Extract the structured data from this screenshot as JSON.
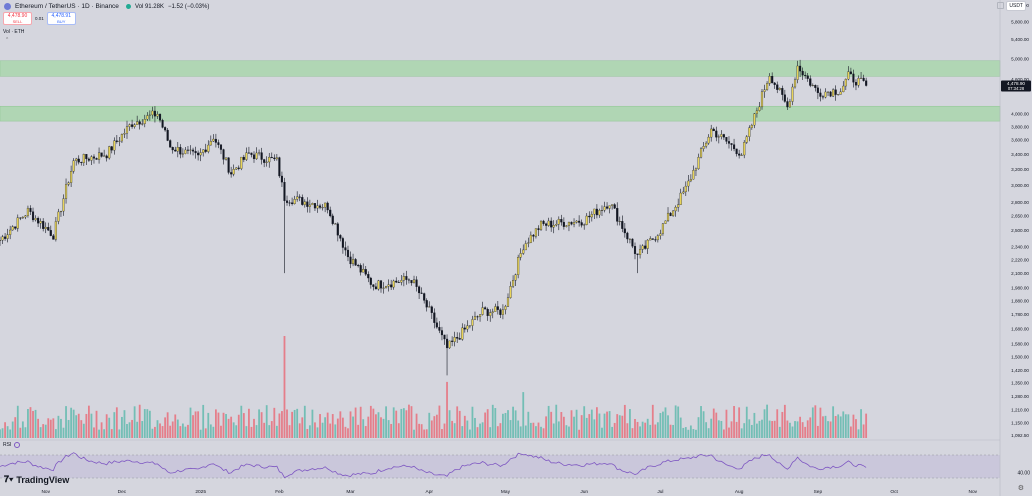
{
  "header": {
    "symbol": "Ethereum / TetherUS · 1D · Binance",
    "volume": "Vol 91.28K",
    "change": "−1.52 (−0.03%)"
  },
  "trade": {
    "sell_price": "4,478.90",
    "sell_label": "SELL",
    "spread": "0.01",
    "buy_price": "4,478.91",
    "buy_label": "BUY"
  },
  "panes": {
    "volume_label": "Vol · ETH",
    "rsi_label": "RSI"
  },
  "brand": {
    "name": "TradingView"
  },
  "axis": {
    "currency": "USDT"
  },
  "price_badge": {
    "price": "4,478.90",
    "countdown": "07:34:28"
  },
  "colors": {
    "up": "#22ab94",
    "down": "#f23645",
    "zone": "#a3d5a5",
    "rsi": "#7e57c2",
    "bg": "#d5d6de"
  },
  "icons": [
    "tradingview-logo-icon",
    "eye-icon",
    "gear-icon",
    "caret-up-icon"
  ],
  "chart_data": {
    "type": "candlestick",
    "scale": "log",
    "y_ticks": [
      1092.5,
      1150,
      1210,
      1280,
      1350,
      1420,
      1500,
      1580,
      1680,
      1780,
      1880,
      1980,
      2100,
      2220,
      2340,
      2500,
      2650,
      2800,
      3000,
      3200,
      3400,
      3600,
      3800,
      4000,
      4600,
      5000,
      5400,
      5800,
      6200
    ],
    "y_tick_labels": [
      "1,092.50",
      "1,150.00",
      "1,210.00",
      "1,280.00",
      "1,350.00",
      "1,420.00",
      "1,500.00",
      "1,580.00",
      "1,680.00",
      "1,780.00",
      "1,880.00",
      "1,980.00",
      "2,100.00",
      "2,220.00",
      "2,340.00",
      "2,500.00",
      "2,650.00",
      "2,800.00",
      "3,000.00",
      "3,200.00",
      "3,400.00",
      "3,600.00",
      "3,800.00",
      "4,000.00",
      "4,600.00",
      "5,000.00",
      "5,400.00",
      "5,800.00",
      "6,200.00"
    ],
    "x_labels": [
      "Nov",
      "Dec",
      "2025",
      "Feb",
      "Mar",
      "Apr",
      "May",
      "Jun",
      "Jul",
      "Aug",
      "Sep",
      "Oct",
      "Nov"
    ],
    "zones": [
      {
        "low": 4650,
        "high": 4950
      },
      {
        "low": 3880,
        "high": 4120
      }
    ],
    "price_path": [
      [
        "2024-10-14",
        2400
      ],
      [
        "2024-10-25",
        2700
      ],
      [
        "2024-11-04",
        2450
      ],
      [
        "2024-11-12",
        3300
      ],
      [
        "2024-11-25",
        3400
      ],
      [
        "2024-12-05",
        3850
      ],
      [
        "2024-12-15",
        4000
      ],
      [
        "2024-12-20",
        3500
      ],
      [
        "2024-12-31",
        3350
      ],
      [
        "2025-01-06",
        3650
      ],
      [
        "2025-01-13",
        3150
      ],
      [
        "2025-01-20",
        3400
      ],
      [
        "2025-01-31",
        3300
      ],
      [
        "2025-02-03",
        2850
      ],
      [
        "2025-02-20",
        2750
      ],
      [
        "2025-02-28",
        2250
      ],
      [
        "2025-03-10",
        2000
      ],
      [
        "2025-03-25",
        2050
      ],
      [
        "2025-04-01",
        1800
      ],
      [
        "2025-04-08",
        1550
      ],
      [
        "2025-04-22",
        1800
      ],
      [
        "2025-04-30",
        1800
      ],
      [
        "2025-05-08",
        2350
      ],
      [
        "2025-05-15",
        2550
      ],
      [
        "2025-06-01",
        2600
      ],
      [
        "2025-06-11",
        2800
      ],
      [
        "2025-06-22",
        2250
      ],
      [
        "2025-07-01",
        2500
      ],
      [
        "2025-07-11",
        2950
      ],
      [
        "2025-07-21",
        3750
      ],
      [
        "2025-08-02",
        3400
      ],
      [
        "2025-08-13",
        4700
      ],
      [
        "2025-08-20",
        4100
      ],
      [
        "2025-08-24",
        4850
      ],
      [
        "2025-09-01",
        4350
      ],
      [
        "2025-09-10",
        4400
      ],
      [
        "2025-09-13",
        4650
      ],
      [
        "2025-09-20",
        4478.9
      ]
    ],
    "wicks": [
      {
        "date": "2025-02-03",
        "low": 2100
      },
      {
        "date": "2025-04-08",
        "low": 1390
      },
      {
        "date": "2025-06-22",
        "low": 2100
      },
      {
        "date": "2025-08-24",
        "high": 4950
      }
    ],
    "volume_spikes": [
      {
        "date": "2025-02-03",
        "value": 1.0
      },
      {
        "date": "2025-04-08",
        "value": 0.55
      },
      {
        "date": "2025-05-08",
        "value": 0.45
      }
    ],
    "rsi": {
      "upper": 70,
      "lower": 30
    },
    "rsi_tick": "40.00"
  }
}
